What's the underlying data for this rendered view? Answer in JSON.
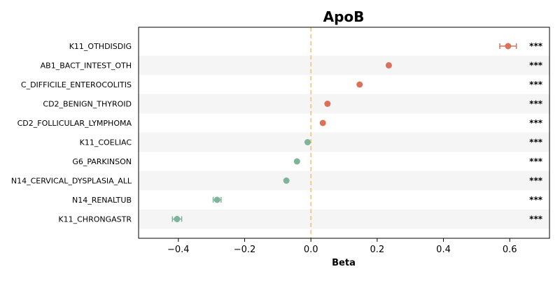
{
  "colors": {
    "positive": "#dd7058",
    "negative": "#7db59a",
    "zero_line": "#f0c27a",
    "band": "#f5f5f5"
  },
  "chart_data": {
    "type": "scatter",
    "title": "ApoB",
    "xlabel": "Beta",
    "xlim": [
      -0.52,
      0.72
    ],
    "xticks": [
      -0.4,
      -0.2,
      0.0,
      0.2,
      0.4,
      0.6
    ],
    "xtick_labels": [
      "−0.4",
      "−0.2",
      "0.0",
      "0.2",
      "0.4",
      "0.6"
    ],
    "reference_line_x": 0.0,
    "alternating_row_bands": true,
    "points": [
      {
        "label": "K11_OTHDISDIG",
        "beta": 0.595,
        "ci_low": 0.57,
        "ci_high": 0.62,
        "sig": "***"
      },
      {
        "label": "AB1_BACT_INTEST_OTH",
        "beta": 0.235,
        "ci_low": 0.231,
        "ci_high": 0.239,
        "sig": "***"
      },
      {
        "label": "C_DIFFICILE_ENTEROCOLITIS",
        "beta": 0.147,
        "ci_low": 0.145,
        "ci_high": 0.149,
        "sig": "***"
      },
      {
        "label": "CD2_BENIGN_THYROID",
        "beta": 0.05,
        "ci_low": 0.048,
        "ci_high": 0.052,
        "sig": "***"
      },
      {
        "label": "CD2_FOLLICULAR_LYMPHOMA",
        "beta": 0.036,
        "ci_low": 0.034,
        "ci_high": 0.038,
        "sig": "***"
      },
      {
        "label": "K11_COELIAC",
        "beta": -0.01,
        "ci_low": -0.012,
        "ci_high": -0.008,
        "sig": "***"
      },
      {
        "label": "G6_PARKINSON",
        "beta": -0.042,
        "ci_low": -0.044,
        "ci_high": -0.04,
        "sig": "***"
      },
      {
        "label": "N14_CERVICAL_DYSPLASIA_ALL",
        "beta": -0.074,
        "ci_low": -0.076,
        "ci_high": -0.072,
        "sig": "***"
      },
      {
        "label": "N14_RENALTUB",
        "beta": -0.283,
        "ci_low": -0.295,
        "ci_high": -0.271,
        "sig": "***"
      },
      {
        "label": "K11_CHRONGASTR",
        "beta": -0.404,
        "ci_low": -0.418,
        "ci_high": -0.39,
        "sig": "***"
      }
    ]
  }
}
